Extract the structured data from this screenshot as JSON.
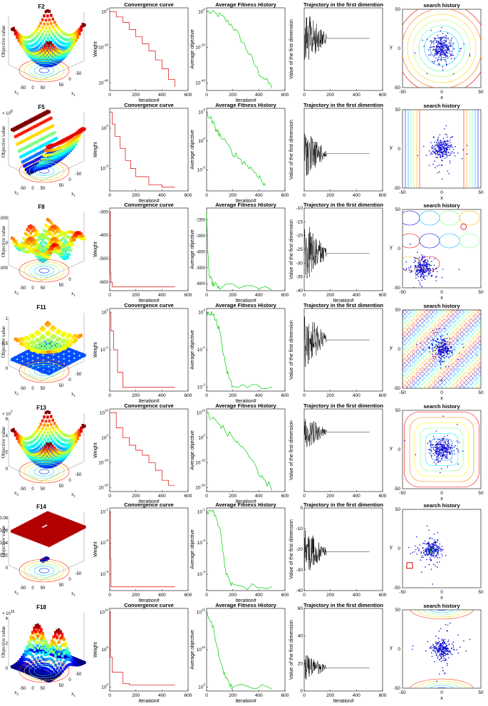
{
  "figure": {
    "description_labels": {
      "x_label_iter": "Iteration#",
      "x": "x",
      "y": "y"
    }
  },
  "rows": [
    {
      "fn": "F2",
      "surface": {
        "title": "F2",
        "zlabel": "Objective value",
        "x1": "x",
        "x1sub": "1",
        "x2": "x",
        "x2sub": "2",
        "ticks_x1": [
          "50",
          "0",
          "-50"
        ],
        "ticks_x2": [
          "-50",
          "0",
          "50"
        ],
        "zticks": [],
        "exponent": "",
        "style": "bowl"
      },
      "convergence": {
        "title": "Convergence curve",
        "ylabel": "Weight",
        "xlabel": "Iteration#",
        "xticks": [
          "0",
          "200",
          "400",
          "600"
        ],
        "yticks": [
          {
            "e": "0"
          },
          {
            "e": "-20"
          },
          {
            "e": "-40"
          }
        ]
      },
      "fitness": {
        "title": "Average Fitness History",
        "ylabel": "Average objective",
        "xlabel": "Iteration#",
        "xticks": [
          "0",
          "200",
          "400",
          "600"
        ],
        "yticks": [
          {
            "e": "0"
          },
          {
            "e": "-20"
          },
          {
            "e": "-40"
          }
        ]
      },
      "trajectory": {
        "title": "Trajectory in the first dimention",
        "ylabel": "Value of the first dimension",
        "xlabel": "",
        "xticks": [
          "0",
          "200",
          "400",
          "600"
        ],
        "yticks": []
      },
      "search": {
        "title": "search history",
        "xlabel": "x",
        "ylabel": "y",
        "xticks": [
          "-50",
          "0",
          "50"
        ],
        "yticks": [
          "50",
          "0",
          "-50"
        ],
        "contour": "circles"
      }
    },
    {
      "fn": "F5",
      "surface": {
        "title": "F5",
        "zlabel": "Objective value",
        "x1": "x",
        "x1sub": "1",
        "x2": "x",
        "x2sub": "2",
        "ticks_x1": [
          "50",
          "0",
          "-50"
        ],
        "ticks_x2": [
          "-50",
          "0",
          "50"
        ],
        "zticks": [],
        "exponent": "8",
        "style": "valley"
      },
      "convergence": {
        "title": "Convergence curve",
        "ylabel": "Weight",
        "xlabel": "Iteration#",
        "xticks": [
          "0",
          "200",
          "400",
          "600"
        ],
        "yticks": [
          {
            "e": "0"
          },
          {
            "e": "-5"
          }
        ]
      },
      "fitness": {
        "title": "Average Fitness History",
        "ylabel": "Average objective",
        "xlabel": "Iteration#",
        "xticks": [
          "0",
          "200",
          "400",
          "600"
        ],
        "yticks": [
          {
            "e": "5"
          },
          {
            "e": "0"
          },
          {
            "e": "-5"
          }
        ]
      },
      "trajectory": {
        "title": "Trajectory in the first dimention",
        "ylabel": "Value of the first dimension",
        "xlabel": "",
        "xticks": [
          "0",
          "200",
          "400",
          "600"
        ],
        "yticks": []
      },
      "search": {
        "title": "search history",
        "xlabel": "x",
        "ylabel": "y",
        "xticks": [
          "-50",
          "0",
          "50"
        ],
        "yticks": [
          "50",
          "0",
          "-50"
        ],
        "contour": "valley"
      }
    },
    {
      "fn": "F8",
      "surface": {
        "title": "F8",
        "zlabel": "Objective value",
        "x1": "x",
        "x1sub": "1",
        "x2": "x",
        "x2sub": "2",
        "ticks_x1": [
          "50",
          "0"
        ],
        "ticks_x2": [
          "-50",
          "0",
          "50"
        ],
        "zticks": [
          "1000",
          "0",
          "-1000"
        ],
        "exponent": "",
        "style": "wavy"
      },
      "convergence": {
        "title": "Convergence curve",
        "ylabel": "Weight",
        "xlabel": "Iteration#",
        "xticks": [
          "0",
          "200",
          "400",
          "600"
        ],
        "yticks": [
          {
            "v": "-300"
          },
          {
            "v": "-400"
          },
          {
            "v": "-500"
          },
          {
            "v": "-600"
          }
        ]
      },
      "fitness": {
        "title": "Average Fitness History",
        "ylabel": "Average objective",
        "xlabel": "Iteration#",
        "xticks": [
          "0",
          "200",
          "400",
          "600"
        ],
        "yticks": [
          {
            "v": "-200"
          },
          {
            "v": "-300"
          },
          {
            "v": "-400"
          },
          {
            "v": "-500"
          },
          {
            "v": "-600"
          }
        ]
      },
      "trajectory": {
        "title": "Trajectory in the first dimention",
        "ylabel": "Value of the first dimension",
        "xlabel": "Iteration#",
        "xticks": [
          "0",
          "200",
          "400",
          "600"
        ],
        "yticks": [
          "-10",
          "-15",
          "-20",
          "-25",
          "-30",
          "-35",
          "-40"
        ]
      },
      "search": {
        "title": "search history",
        "xlabel": "x",
        "ylabel": "y",
        "xticks": [
          "-50",
          "0",
          "50"
        ],
        "yticks": [
          "50",
          "0",
          "-50"
        ],
        "contour": "wavy"
      }
    },
    {
      "fn": "F11",
      "surface": {
        "title": "F11",
        "zlabel": "Objective value",
        "x1": "x",
        "x1sub": "1",
        "x2": "x",
        "x2sub": "2",
        "ticks_x1": [
          "50",
          "0",
          "-50"
        ],
        "ticks_x2": [
          "-50",
          "0",
          "50"
        ],
        "zticks": [
          "1",
          "0.5",
          "0"
        ],
        "exponent": "",
        "style": "spiky"
      },
      "convergence": {
        "title": "Convergence curve",
        "ylabel": "Weight",
        "xlabel": "Iteration#",
        "xticks": [
          "0",
          "200",
          "400",
          "600"
        ],
        "yticks": [
          {
            "e": "0"
          },
          {
            "e": "-1"
          }
        ]
      },
      "fitness": {
        "title": "Average Fitness History",
        "ylabel": "Average objective",
        "xlabel": "Iteration#",
        "xticks": [
          "0",
          "200",
          "400",
          "600"
        ],
        "yticks": [
          {
            "e": "0"
          },
          {
            "e": "-1"
          },
          {
            "e": "-2"
          }
        ]
      },
      "trajectory": {
        "title": "Trajectory in the first dimention",
        "ylabel": "Value of the first dimension",
        "xlabel": "",
        "xticks": [
          "0",
          "200",
          "400",
          "600"
        ],
        "yticks": []
      },
      "search": {
        "title": "search history",
        "xlabel": "x",
        "ylabel": "y",
        "xticks": [
          "-50",
          "0",
          "50"
        ],
        "yticks": [
          "50",
          "0",
          "-50"
        ],
        "contour": "grid"
      }
    },
    {
      "fn": "F13",
      "surface": {
        "title": "F13",
        "zlabel": "Objective value",
        "x1": "x",
        "x1sub": "1",
        "x2": "x",
        "x2sub": "2",
        "ticks_x1": [
          "50",
          "0",
          "-50"
        ],
        "ticks_x2": [
          "-50",
          "0",
          "50"
        ],
        "zticks": [
          "6",
          "4",
          "2",
          "0"
        ],
        "exponent": "7",
        "style": "bowl"
      },
      "convergence": {
        "title": "Convergence curve",
        "ylabel": "Weight",
        "xlabel": "Iteration#",
        "xticks": [
          "0",
          "200",
          "400",
          "600"
        ],
        "yticks": [
          {
            "e": "10"
          },
          {
            "e": "0"
          },
          {
            "e": "-10"
          },
          {
            "e": "-20"
          }
        ]
      },
      "fitness": {
        "title": "Average Fitness History",
        "ylabel": "Average objective",
        "xlabel": "Iteration#",
        "xticks": [
          "0",
          "200",
          "400",
          "600"
        ],
        "yticks": [
          {
            "e": "10"
          },
          {
            "e": "0"
          },
          {
            "e": "-10"
          },
          {
            "e": "-20"
          }
        ]
      },
      "trajectory": {
        "title": "Trajectory in the first dimention",
        "ylabel": "Value of the first dimension",
        "xlabel": "",
        "xticks": [
          "0",
          "200",
          "400",
          "600"
        ],
        "yticks": []
      },
      "search": {
        "title": "search history",
        "xlabel": "x",
        "ylabel": "y",
        "xticks": [
          "-50",
          "0",
          "50"
        ],
        "yticks": [
          "50",
          "0",
          "-50"
        ],
        "contour": "square"
      }
    },
    {
      "fn": "F14",
      "surface": {
        "title": "F14",
        "zlabel": "Objective value",
        "x1": "x",
        "x1sub": "1",
        "x2": "x",
        "x2sub": "2",
        "ticks_x1": [
          "50",
          "0",
          "-50"
        ],
        "ticks_x2": [
          "-50",
          "0",
          "50"
        ],
        "zticks": [
          "0.08",
          "0.06",
          "0.04",
          "0.02",
          "0"
        ],
        "exponent": "",
        "style": "plateau"
      },
      "convergence": {
        "title": "Convergence curve",
        "ylabel": "Weight",
        "xlabel": "Iteration#",
        "xticks": [
          "0",
          "200",
          "400",
          "600"
        ],
        "yticks": [
          {
            "e": "-1"
          },
          {
            "e": "-2"
          },
          {
            "e": "-3"
          }
        ]
      },
      "fitness": {
        "title": "Average Fitness History",
        "ylabel": "Average objective",
        "xlabel": "Iteration#",
        "xticks": [
          "0",
          "200",
          "400",
          "600"
        ],
        "yticks": [
          {
            "e": "-1"
          },
          {
            "e": "-2"
          },
          {
            "e": "-3"
          }
        ]
      },
      "trajectory": {
        "title": "Trajectory in the first dimention",
        "ylabel": "Value of the first dimension",
        "xlabel": "",
        "xticks": [
          "0",
          "200",
          "400",
          "600"
        ],
        "yticks": [
          "0",
          "-10",
          "-20",
          "-30",
          "-40"
        ]
      },
      "search": {
        "title": "search history",
        "xlabel": "x",
        "ylabel": "y",
        "xticks": [
          "-50",
          "0",
          "50"
        ],
        "yticks": [
          "50",
          "0",
          "-50"
        ],
        "contour": "foxholes"
      }
    },
    {
      "fn": "F18",
      "surface": {
        "title": "F18",
        "zlabel": "Objective value",
        "x1": "x",
        "x1sub": "1",
        "x2": "x",
        "x2sub": "2",
        "ticks_x1": [
          "50",
          "0",
          "-50"
        ],
        "ticks_x2": [
          "-50",
          "0",
          "50"
        ],
        "zticks": [
          "4",
          "2",
          "0"
        ],
        "exponent": "16",
        "style": "twopeak"
      },
      "convergence": {
        "title": "Convergence curve",
        "ylabel": "Weight",
        "xlabel": "Iteration#",
        "xticks": [
          "0",
          "200",
          "400",
          "600"
        ],
        "yticks": [
          {
            "e": "10"
          },
          {
            "e": "5"
          },
          {
            "e": "0"
          }
        ]
      },
      "fitness": {
        "title": "Average Fitness History",
        "ylabel": "Average objective",
        "xlabel": "Iteration#",
        "xticks": [
          "0",
          "200",
          "400",
          "600"
        ],
        "yticks": [
          {
            "e": "15"
          },
          {
            "e": "10"
          },
          {
            "e": "5"
          }
        ]
      },
      "trajectory": {
        "title": "Trajectory in the first dimention",
        "ylabel": "Value of the first dimension",
        "xlabel": "Iteration#",
        "xticks": [
          "0",
          "200",
          "400",
          "600"
        ],
        "yticks": [
          "60",
          "40",
          "20",
          "0"
        ]
      },
      "search": {
        "title": "search history",
        "xlabel": "x",
        "ylabel": "y",
        "xticks": [
          "-50",
          "0",
          "50"
        ],
        "yticks": [
          "50",
          "0",
          "-50"
        ],
        "contour": "twopeak"
      }
    }
  ],
  "chart_data": [
    {
      "type": "line",
      "panel": "convergence",
      "series": [
        {
          "name": "F2",
          "x": [
            0,
            50,
            100,
            150,
            200,
            250,
            300,
            350,
            400,
            450,
            500
          ],
          "y_log10": [
            0,
            -3,
            -6,
            -10,
            -14,
            -18,
            -22,
            -27,
            -32,
            -38,
            -42
          ]
        },
        {
          "name": "F5",
          "x": [
            0,
            20,
            40,
            80,
            120,
            160,
            200,
            300,
            400,
            500
          ],
          "y_log10": [
            2,
            0.5,
            -1,
            -2.5,
            -4,
            -5,
            -6,
            -7,
            -7.3,
            -7.3
          ]
        },
        {
          "name": "F8",
          "x": [
            0,
            5,
            10,
            20,
            500
          ],
          "y": [
            -300,
            -560,
            -600,
            -620,
            -620
          ]
        },
        {
          "name": "F11",
          "x": [
            0,
            10,
            30,
            60,
            100,
            500
          ],
          "y_log10": [
            0,
            -0.5,
            -1,
            -1.6,
            -2,
            -2
          ]
        },
        {
          "name": "F13",
          "x": [
            0,
            50,
            100,
            150,
            200,
            250,
            300,
            350,
            400,
            450,
            500
          ],
          "y_log10": [
            10,
            4,
            0,
            -3,
            -5,
            -7,
            -10,
            -13,
            -17,
            -19,
            -19
          ]
        },
        {
          "name": "F14",
          "x": [
            0,
            5,
            10,
            500
          ],
          "y_log10": [
            -1,
            -2.5,
            -3.4,
            -3.4
          ]
        },
        {
          "name": "F18",
          "x": [
            0,
            5,
            20,
            100,
            150,
            500
          ],
          "y_log10": [
            10,
            4,
            2,
            0.5,
            0.3,
            0.3
          ]
        }
      ]
    },
    {
      "type": "line",
      "panel": "fitness",
      "series": [
        {
          "name": "F2",
          "x": [
            0,
            100,
            200,
            300,
            400,
            500
          ],
          "y_log10": [
            0,
            -2,
            -8,
            -20,
            -34,
            -42
          ]
        },
        {
          "name": "F5",
          "x": [
            0,
            50,
            100,
            200,
            300,
            400,
            450
          ],
          "y_log10": [
            5,
            3,
            1,
            -2,
            -4,
            -6,
            -8
          ]
        },
        {
          "name": "F8",
          "x": [
            0,
            10,
            20,
            50,
            100,
            500
          ],
          "y": [
            -150,
            -400,
            -550,
            -600,
            -620,
            -620
          ]
        },
        {
          "name": "F11",
          "x": [
            0,
            50,
            100,
            150,
            200,
            500
          ],
          "y_log10": [
            0,
            0,
            -0.5,
            -1.5,
            -2,
            -2
          ]
        },
        {
          "name": "F13",
          "x": [
            0,
            100,
            200,
            300,
            400,
            500
          ],
          "y_log10": [
            10,
            5,
            0,
            -5,
            -15,
            -20
          ]
        },
        {
          "name": "F14",
          "x": [
            0,
            50,
            100,
            150,
            200,
            500
          ],
          "y_log10": [
            -1,
            -1,
            -1.5,
            -3,
            -3.4,
            -3.4
          ]
        },
        {
          "name": "F18",
          "x": [
            0,
            50,
            100,
            150,
            200,
            500
          ],
          "y_log10": [
            15,
            13,
            9,
            6,
            5,
            5
          ]
        }
      ]
    }
  ]
}
